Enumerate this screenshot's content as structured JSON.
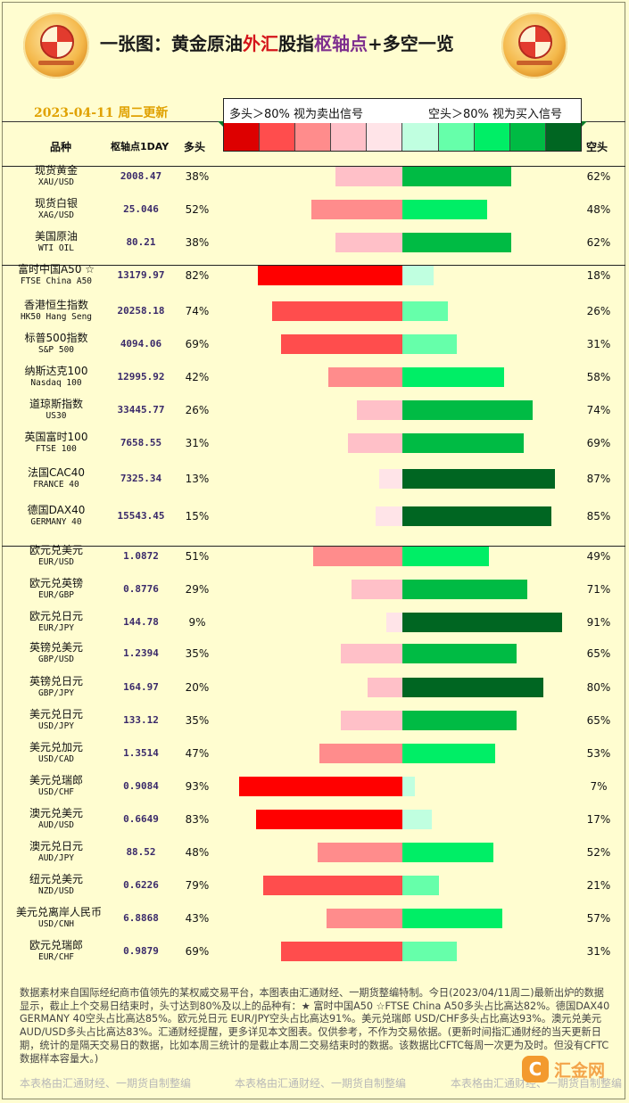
{
  "header": {
    "title_parts": [
      "一张图：黄金原油",
      "外汇",
      "股指",
      "枢轴点",
      "+多空一览"
    ],
    "date": "2023-04-11 周二更新",
    "legend_left": "多头＞80% 视为卖出信号",
    "legend_right": "空头＞80% 视为买入信号",
    "legend_colors": [
      "#dd0000",
      "#ff4d4d",
      "#ff8c8c",
      "#ffc0c8",
      "#ffe4e8",
      "#c0ffe0",
      "#66ffaa",
      "#00ee66",
      "#00bb44",
      "#006622"
    ],
    "col_product": "品种",
    "col_pivot": "枢轴点1DAY",
    "col_long": "多头",
    "col_short": "空头"
  },
  "chart_data": {
    "type": "bar",
    "xlim": [
      0,
      100
    ],
    "rows": [
      {
        "cn": "现货黄金",
        "en": "XAU/USD",
        "pivot": "2008.47",
        "long": 38,
        "short": 62
      },
      {
        "cn": "现货白银",
        "en": "XAG/USD",
        "pivot": "25.046",
        "long": 52,
        "short": 48
      },
      {
        "cn": "美国原油",
        "en": "WTI OIL",
        "pivot": "80.21",
        "long": 38,
        "short": 62
      },
      {
        "cn": "富时中国A50 ☆",
        "en": "FTSE China A50",
        "pivot": "13179.97",
        "long": 82,
        "short": 18
      },
      {
        "cn": "香港恒生指数",
        "en": "HK50 Hang Seng",
        "pivot": "20258.18",
        "long": 74,
        "short": 26
      },
      {
        "cn": "标普500指数",
        "en": "S&P 500",
        "pivot": "4094.06",
        "long": 69,
        "short": 31
      },
      {
        "cn": "纳斯达克100",
        "en": "Nasdaq 100",
        "pivot": "12995.92",
        "long": 42,
        "short": 58
      },
      {
        "cn": "道琼斯指数",
        "en": "US30",
        "pivot": "33445.77",
        "long": 26,
        "short": 74
      },
      {
        "cn": "英国富时100",
        "en": "FTSE 100",
        "pivot": "7658.55",
        "long": 31,
        "short": 69
      },
      {
        "cn": "法国CAC40",
        "en": "FRANCE 40",
        "pivot": "7325.34",
        "long": 13,
        "short": 87
      },
      {
        "cn": "德国DAX40",
        "en": "GERMANY 40",
        "pivot": "15543.45",
        "long": 15,
        "short": 85
      },
      {
        "cn": "欧元兑美元",
        "en": "EUR/USD",
        "pivot": "1.0872",
        "long": 51,
        "short": 49
      },
      {
        "cn": "欧元兑英镑",
        "en": "EUR/GBP",
        "pivot": "0.8776",
        "long": 29,
        "short": 71
      },
      {
        "cn": "欧元兑日元",
        "en": "EUR/JPY",
        "pivot": "144.78",
        "long": 9,
        "short": 91
      },
      {
        "cn": "英镑兑美元",
        "en": "GBP/USD",
        "pivot": "1.2394",
        "long": 35,
        "short": 65
      },
      {
        "cn": "英镑兑日元",
        "en": "GBP/JPY",
        "pivot": "164.97",
        "long": 20,
        "short": 80
      },
      {
        "cn": "美元兑日元",
        "en": "USD/JPY",
        "pivot": "133.12",
        "long": 35,
        "short": 65
      },
      {
        "cn": "美元兑加元",
        "en": "USD/CAD",
        "pivot": "1.3514",
        "long": 47,
        "short": 53
      },
      {
        "cn": "美元兑瑞郎",
        "en": "USD/CHF",
        "pivot": "0.9084",
        "long": 93,
        "short": 7
      },
      {
        "cn": "澳元兑美元",
        "en": "AUD/USD",
        "pivot": "0.6649",
        "long": 83,
        "short": 17
      },
      {
        "cn": "澳元兑日元",
        "en": "AUD/JPY",
        "pivot": "88.52",
        "long": 48,
        "short": 52
      },
      {
        "cn": "纽元兑美元",
        "en": "NZD/USD",
        "pivot": "0.6226",
        "long": 79,
        "short": 21
      },
      {
        "cn": "美元兑离岸人民币",
        "en": "USD/CNH",
        "pivot": "6.8868",
        "long": 43,
        "short": 57
      },
      {
        "cn": "欧元兑瑞郎",
        "en": "EUR/CHF",
        "pivot": "0.9879",
        "long": 69,
        "short": 31
      }
    ]
  },
  "footer": {
    "text": "数据素材来自国际经纪商市值领先的某权威交易平台，本图表由汇通财经、一期货整编特制。今日(2023/04/11周二)最新出炉的数据显示，截止上个交易日结束时，头寸达到80%及以上的品种有：★ 富时中国A50 ☆FTSE China A50多头占比高达82%。德国DAX40　　GERMANY 40空头占比高达85%。欧元兑日元 EUR/JPY空头占比高达91%。美元兑瑞郎 USD/CHF多头占比高达93%。澳元兑美元 AUD/USD多头占比高达83%。汇通财经提醒，更多详见本文图表。仅供参考，不作为交易依据。(更新时间指汇通财经的当天更新日期，统计的是隔天交易日的数据，比如本周三统计的是截止本周二交易结束时的数据。该数据比CFTC每周一次更为及时。但没有CFTC数据样本容量大。)",
    "watermark": "本表格由汇通财经、一期货自制整编",
    "brand": "汇金网"
  }
}
